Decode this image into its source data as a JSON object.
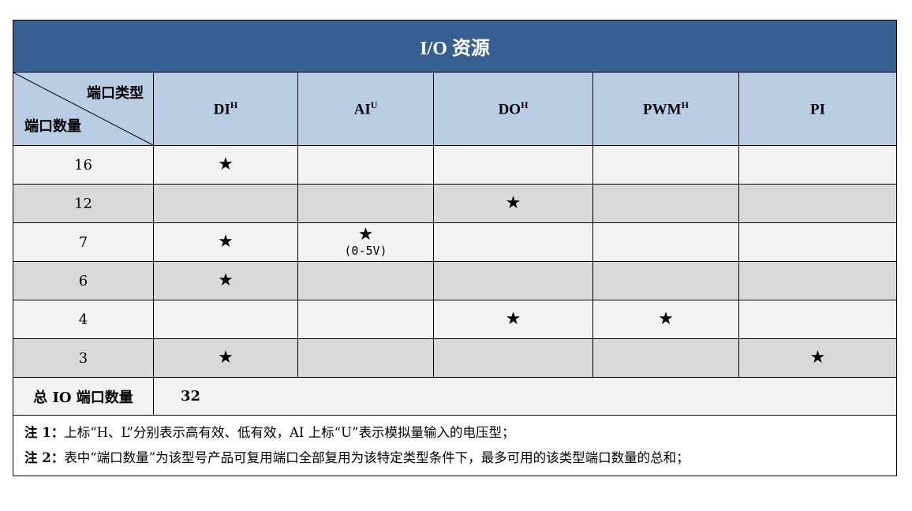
{
  "title": "I/O 资源",
  "corner": {
    "type_label": "端口类型",
    "count_label": "端口数量"
  },
  "columns": [
    {
      "name": "DI",
      "sup": "H"
    },
    {
      "name": "AI",
      "sup": "U"
    },
    {
      "name": "DO",
      "sup": "H"
    },
    {
      "name": "PWM",
      "sup": "H"
    },
    {
      "name": "PI",
      "sup": ""
    }
  ],
  "star": "★",
  "rows": [
    {
      "count": "16",
      "marks": [
        true,
        false,
        false,
        false,
        false
      ]
    },
    {
      "count": "12",
      "marks": [
        false,
        false,
        true,
        false,
        false
      ]
    },
    {
      "count": "7",
      "marks": [
        true,
        true,
        false,
        false,
        false
      ],
      "ai_note": "(0-5V)"
    },
    {
      "count": "6",
      "marks": [
        true,
        false,
        false,
        false,
        false
      ]
    },
    {
      "count": "4",
      "marks": [
        false,
        false,
        true,
        true,
        false
      ]
    },
    {
      "count": "3",
      "marks": [
        true,
        false,
        false,
        false,
        true
      ]
    }
  ],
  "total": {
    "label": "总 IO 端口数量",
    "value": "32"
  },
  "notes": [
    {
      "label": "注 1：",
      "text": "上标“H、L”分别表示高有效、低有效，AI 上标“U”表示模拟量输入的电压型；"
    },
    {
      "label": "注 2：",
      "text": "表中“端口数量”为该型号产品可复用端口全部复用为该特定类型条件下，最多可用的该类型端口数量的总和；"
    }
  ]
}
